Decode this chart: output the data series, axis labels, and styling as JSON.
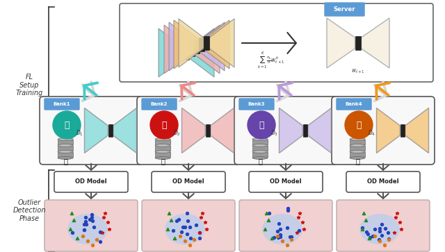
{
  "bg_color": "#ffffff",
  "fl_label": "FL\nSetup\nTraining",
  "od_label": "Outlier\nDetection\nPhase",
  "banks": [
    {
      "name": "Bank1",
      "color": "#7ed8d8",
      "icon_color": "#1aaa9a"
    },
    {
      "name": "Bank2",
      "color": "#f0b0b0",
      "icon_color": "#cc1111"
    },
    {
      "name": "Bank3",
      "color": "#c8b8e8",
      "icon_color": "#6644aa"
    },
    {
      "name": "Bank4",
      "color": "#f5c070",
      "icon_color": "#cc5500"
    }
  ],
  "arrow_colors": [
    "#44cccc",
    "#ee8888",
    "#bb99dd",
    "#ee9922"
  ],
  "server_bowtie_colors": [
    "#7ed8d8",
    "#f0b0b0",
    "#c8b8e8",
    "#f5c070",
    "#f0d8a0"
  ],
  "scatter_bg": "#f0d0d0",
  "scatter_blob": "#b8ccee",
  "dot_colors": {
    "blue": "#2244bb",
    "red": "#cc1111",
    "green": "#228822",
    "orange": "#dd7711"
  },
  "badge_color": "#5b9bd5",
  "server_bowtie_cream": "#f5f0e0"
}
